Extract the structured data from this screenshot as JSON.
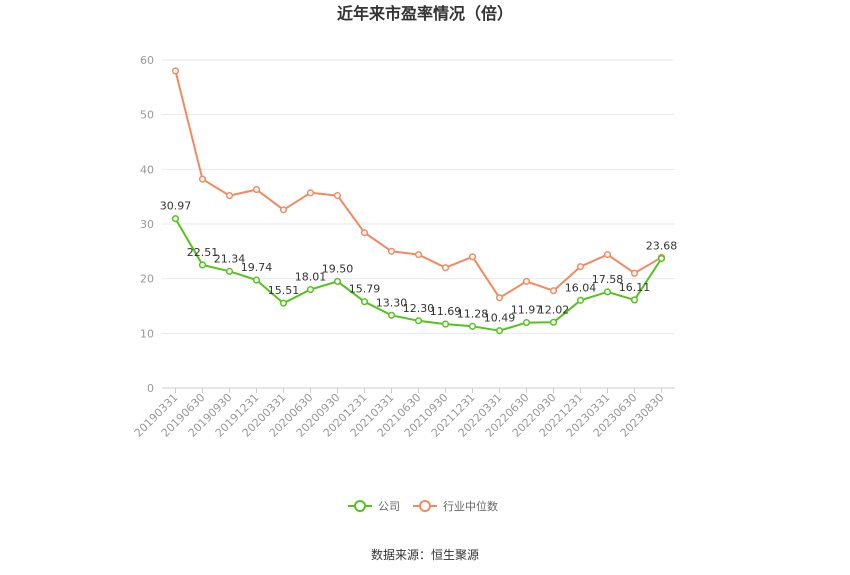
{
  "chart_data": {
    "type": "line",
    "title": "近年来市盈率情况（倍）",
    "categories": [
      "20190331",
      "20190630",
      "20190930",
      "20191231",
      "20200331",
      "20200630",
      "20200930",
      "20201231",
      "20210331",
      "20210630",
      "20210930",
      "20211231",
      "20220331",
      "20220630",
      "20220930",
      "20221231",
      "20230331",
      "20230630",
      "20230830"
    ],
    "series": [
      {
        "name": "公司",
        "color": "#52c41a",
        "values": [
          30.97,
          22.51,
          21.34,
          19.74,
          15.51,
          18.01,
          19.5,
          15.79,
          13.3,
          12.3,
          11.69,
          11.28,
          10.49,
          11.97,
          12.02,
          16.04,
          17.58,
          16.11,
          23.68
        ],
        "labels": [
          "30.97",
          "22.51",
          "21.34",
          "19.74",
          "15.51",
          "18.01",
          "19.50",
          "15.79",
          "13.30",
          "12.30",
          "11.69",
          "11.28",
          "10.49",
          "11.97",
          "12.02",
          "16.04",
          "17.58",
          "16.11",
          "23.68"
        ]
      },
      {
        "name": "行业中位数",
        "color": "#f4895f",
        "values": [
          58,
          38.2,
          35.2,
          36.3,
          32.6,
          35.7,
          35.2,
          28.4,
          25,
          24.4,
          22,
          24,
          16.5,
          19.5,
          17.8,
          22.2,
          24.4,
          21,
          23.9
        ]
      }
    ],
    "ylim": [
      0,
      60
    ],
    "yticks": [
      "0",
      "10",
      "20",
      "30",
      "40",
      "50",
      "60"
    ],
    "grid": true,
    "legend_position": "bottom"
  },
  "source": "数据来源：恒生聚源"
}
